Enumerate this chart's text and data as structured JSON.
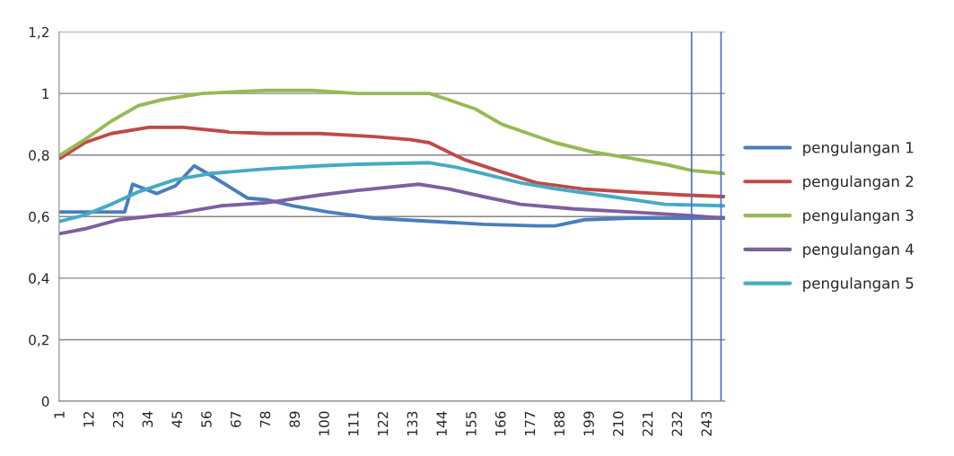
{
  "chart_data": {
    "type": "line",
    "xlim": [
      0.5,
      249.5
    ],
    "xticks": [
      1,
      12,
      23,
      34,
      45,
      56,
      67,
      78,
      89,
      100,
      111,
      122,
      133,
      144,
      155,
      166,
      177,
      188,
      199,
      210,
      221,
      232,
      243
    ],
    "ylim": [
      0,
      1.2
    ],
    "yticks": [
      0,
      {
        "value": 0.2,
        "label": "0,2"
      },
      {
        "value": 0.4,
        "label": "0,4"
      },
      {
        "value": 0.6,
        "label": "0,6"
      },
      {
        "value": 0.8,
        "label": "0,8"
      },
      1,
      {
        "value": 1.2,
        "label": "1,2"
      }
    ],
    "grid": "y",
    "legend": "right",
    "marker": "none",
    "line_style": "solid",
    "ref_lines": [
      {
        "axis": "x",
        "value": 237,
        "color": "#4472c4"
      },
      {
        "axis": "x",
        "value": 248,
        "color": "#4472c4"
      }
    ],
    "series": [
      {
        "name": "pengulangan 1",
        "color": "#4a7ebb",
        "x": [
          1,
          25,
          28,
          37,
          44,
          51,
          57,
          71,
          78,
          88,
          101,
          118,
          139,
          159,
          179,
          186,
          197,
          214,
          249
        ],
        "values": [
          0.615,
          0.615,
          0.705,
          0.675,
          0.7,
          0.765,
          0.735,
          0.66,
          0.655,
          0.635,
          0.615,
          0.595,
          0.585,
          0.575,
          0.57,
          0.57,
          0.59,
          0.595,
          0.595
        ]
      },
      {
        "name": "pengulangan 2",
        "color": "#be4b48",
        "x": [
          1,
          10,
          20,
          34,
          47,
          64,
          78,
          98,
          118,
          132,
          139,
          146,
          152,
          166,
          179,
          196,
          214,
          234,
          249
        ],
        "values": [
          0.79,
          0.84,
          0.87,
          0.89,
          0.89,
          0.875,
          0.87,
          0.87,
          0.86,
          0.85,
          0.84,
          0.81,
          0.785,
          0.745,
          0.71,
          0.69,
          0.68,
          0.67,
          0.665
        ]
      },
      {
        "name": "pengulangan 3",
        "color": "#98b954",
        "x": [
          1,
          10,
          20,
          30,
          39,
          54,
          78,
          95,
          112,
          139,
          146,
          156,
          166,
          176,
          186,
          200,
          214,
          227,
          237,
          249
        ],
        "values": [
          0.8,
          0.85,
          0.91,
          0.96,
          0.98,
          1.0,
          1.01,
          1.01,
          1.0,
          1.0,
          0.98,
          0.95,
          0.9,
          0.87,
          0.84,
          0.81,
          0.79,
          0.77,
          0.75,
          0.74
        ]
      },
      {
        "name": "pengulangan 4",
        "color": "#7d60a0",
        "x": [
          1,
          10,
          23,
          44,
          61,
          78,
          98,
          112,
          129,
          135,
          146,
          159,
          173,
          193,
          214,
          234,
          249
        ],
        "values": [
          0.545,
          0.56,
          0.59,
          0.61,
          0.635,
          0.645,
          0.67,
          0.685,
          0.7,
          0.705,
          0.69,
          0.665,
          0.64,
          0.625,
          0.615,
          0.605,
          0.595
        ]
      },
      {
        "name": "pengulangan 5",
        "color": "#46aac5",
        "x": [
          1,
          10,
          20,
          30,
          44,
          57,
          78,
          98,
          112,
          139,
          149,
          159,
          173,
          186,
          207,
          227,
          249
        ],
        "values": [
          0.585,
          0.605,
          0.64,
          0.68,
          0.72,
          0.74,
          0.755,
          0.765,
          0.77,
          0.775,
          0.76,
          0.74,
          0.71,
          0.69,
          0.665,
          0.64,
          0.635
        ]
      }
    ]
  }
}
